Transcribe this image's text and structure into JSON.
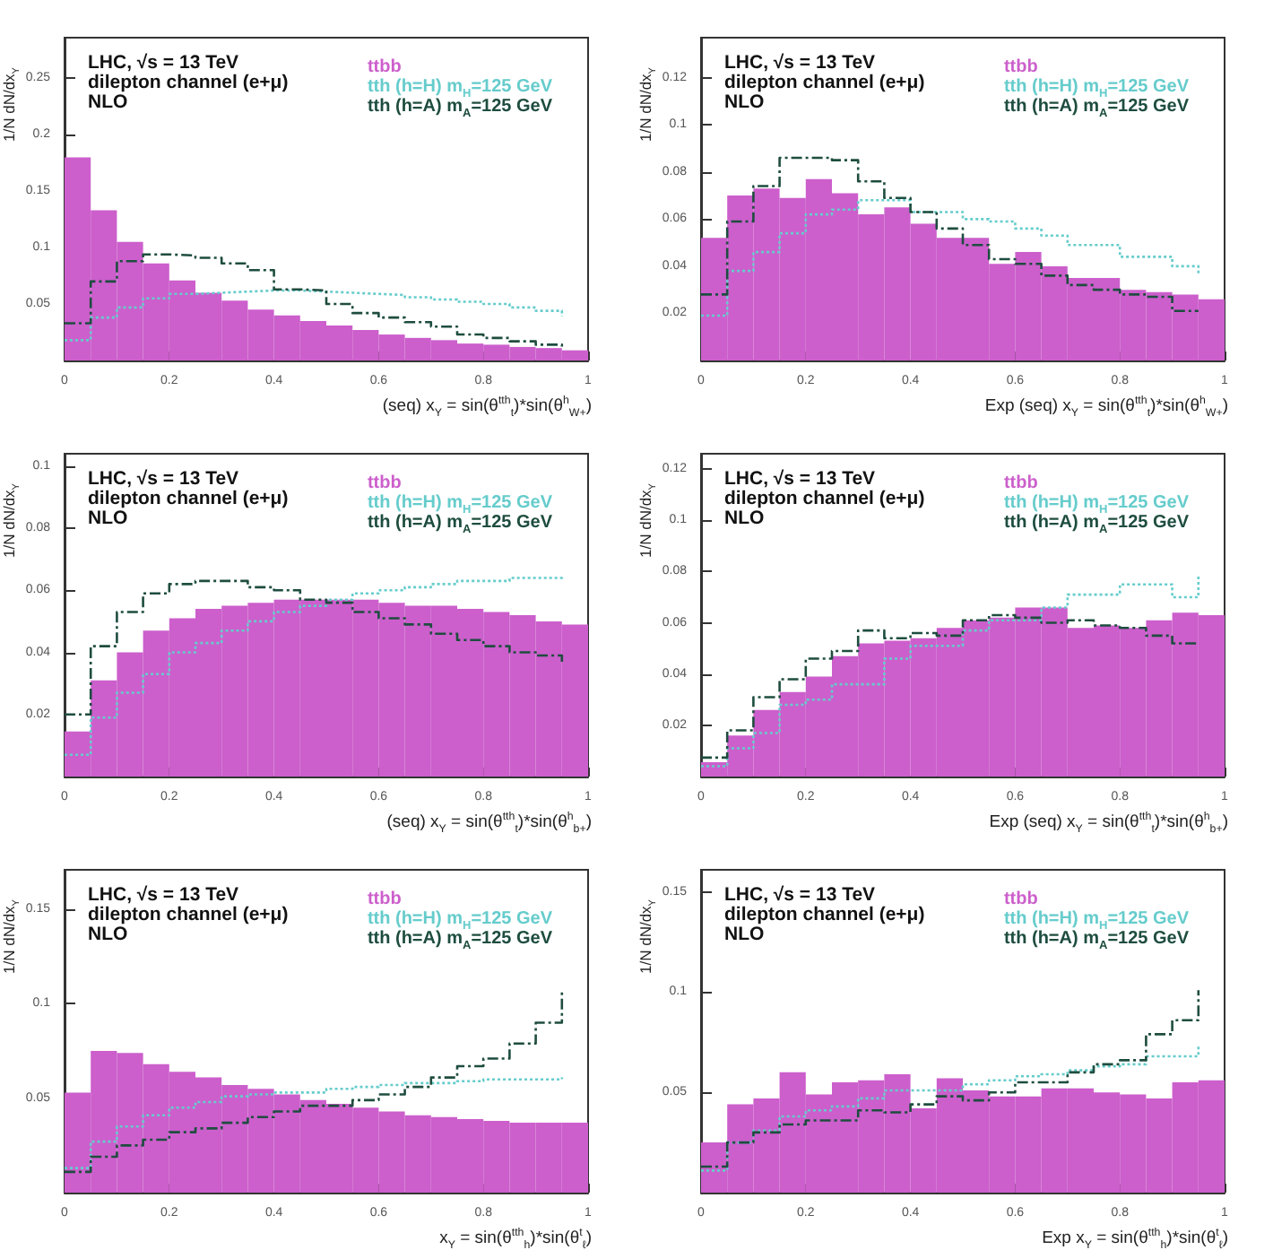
{
  "chart_data": [
    {
      "type": "histogram",
      "bins": [
        0,
        0.05,
        0.1,
        0.15,
        0.2,
        0.25,
        0.3,
        0.35,
        0.4,
        0.45,
        0.5,
        0.55,
        0.6,
        0.65,
        0.7,
        0.75,
        0.8,
        0.85,
        0.9,
        0.95,
        1
      ],
      "xlim": [
        0,
        1
      ],
      "ylim": [
        0,
        0.286
      ],
      "xticks": [
        0,
        0.2,
        0.4,
        0.6,
        0.8,
        1
      ],
      "yticks": [
        0.05,
        0.1,
        0.15,
        0.2,
        0.25
      ],
      "xlabel": "(seq) x$_{Y}$ = sin(θ$^{tth}$$_{t}$)*sin(θ$^{h}$$_{W+}$)",
      "ylabel": "1/N dN/dx$_{Y}$",
      "legend": "top right",
      "annotations": [
        "LHC, √s = 13 TeV",
        "dilepton channel (e+μ)",
        "NLO"
      ],
      "series": [
        {
          "name": "ttbb",
          "color": "#cc5fcc",
          "values": [
            0.18,
            0.133,
            0.105,
            0.086,
            0.071,
            0.06,
            0.053,
            0.045,
            0.04,
            0.035,
            0.031,
            0.027,
            0.023,
            0.02,
            0.018,
            0.015,
            0.014,
            0.012,
            0.011,
            0.009
          ]
        },
        {
          "name": "tth (h=H)  m$_{H}$=125 GeV",
          "type": "step",
          "line_style": "dotted",
          "color": "#66cccc",
          "x": [
            0,
            0.05,
            0.1,
            0.15,
            0.2,
            0.25,
            0.3,
            0.35,
            0.4,
            0.45,
            0.5,
            0.55,
            0.6,
            0.65,
            0.7,
            0.75,
            0.8,
            0.85,
            0.9,
            0.95
          ],
          "values": [
            0.018,
            0.038,
            0.047,
            0.055,
            0.059,
            0.06,
            0.061,
            0.062,
            0.062,
            0.061,
            0.06,
            0.059,
            0.058,
            0.056,
            0.054,
            0.052,
            0.05,
            0.047,
            0.044,
            0.039
          ]
        },
        {
          "name": "tth (h=A)  m$_{A}$=125 GeV",
          "type": "step",
          "line_style": "dashed",
          "color": "#1e4d3f",
          "x": [
            0,
            0.05,
            0.1,
            0.15,
            0.2,
            0.25,
            0.3,
            0.35,
            0.4,
            0.45,
            0.5,
            0.55,
            0.6,
            0.65,
            0.7,
            0.75,
            0.8,
            0.85,
            0.9,
            0.95
          ],
          "values": [
            0.033,
            0.07,
            0.088,
            0.094,
            0.093,
            0.091,
            0.086,
            0.08,
            0.063,
            0.062,
            0.05,
            0.042,
            0.038,
            0.034,
            0.03,
            0.023,
            0.02,
            0.017,
            0.014,
            0.012
          ]
        }
      ]
    },
    {
      "type": "histogram",
      "bins": [
        0,
        0.05,
        0.1,
        0.15,
        0.2,
        0.25,
        0.3,
        0.35,
        0.4,
        0.45,
        0.5,
        0.55,
        0.6,
        0.65,
        0.7,
        0.75,
        0.8,
        0.85,
        0.9,
        0.95,
        1
      ],
      "xlim": [
        0,
        1
      ],
      "ylim": [
        0,
        0.137
      ],
      "xticks": [
        0,
        0.2,
        0.4,
        0.6,
        0.8,
        1
      ],
      "yticks": [
        0.02,
        0.04,
        0.06,
        0.08,
        0.1,
        0.12
      ],
      "xlabel": "Exp (seq) x$_{Y}$ = sin(θ$^{tth}$$_{t}$)*sin(θ$^{h}$$_{W+}$)",
      "ylabel": "1/N dN/dx$_{Y}$",
      "legend": "top right",
      "annotations": [
        "LHC, √s = 13 TeV",
        "dilepton channel (e+μ)",
        "NLO"
      ],
      "series": [
        {
          "name": "ttbb",
          "color": "#cc5fcc",
          "values": [
            0.052,
            0.07,
            0.073,
            0.069,
            0.077,
            0.071,
            0.062,
            0.065,
            0.058,
            0.052,
            0.052,
            0.041,
            0.046,
            0.04,
            0.035,
            0.035,
            0.03,
            0.029,
            0.028,
            0.026
          ]
        },
        {
          "name": "tth (h=H)  m$_{H}$=125 GeV",
          "type": "step",
          "line_style": "dotted",
          "color": "#66cccc",
          "x": [
            0,
            0.05,
            0.1,
            0.15,
            0.2,
            0.25,
            0.3,
            0.35,
            0.4,
            0.45,
            0.5,
            0.55,
            0.6,
            0.65,
            0.7,
            0.75,
            0.8,
            0.85,
            0.9,
            0.95
          ],
          "values": [
            0.019,
            0.038,
            0.046,
            0.054,
            0.062,
            0.064,
            0.068,
            0.068,
            0.063,
            0.063,
            0.06,
            0.059,
            0.056,
            0.053,
            0.049,
            0.049,
            0.044,
            0.044,
            0.04,
            0.037
          ]
        },
        {
          "name": "tth (h=A)  m$_{A}$=125 GeV",
          "type": "step",
          "line_style": "dashed",
          "color": "#1e4d3f",
          "x": [
            0,
            0.05,
            0.1,
            0.15,
            0.2,
            0.25,
            0.3,
            0.35,
            0.4,
            0.45,
            0.5,
            0.55,
            0.6,
            0.65,
            0.7,
            0.75,
            0.8,
            0.85,
            0.9,
            0.95
          ],
          "values": [
            0.028,
            0.059,
            0.074,
            0.086,
            0.086,
            0.085,
            0.076,
            0.069,
            0.063,
            0.056,
            0.049,
            0.043,
            0.041,
            0.036,
            0.032,
            0.03,
            0.028,
            0.027,
            0.021,
            0.021
          ]
        }
      ]
    },
    {
      "type": "histogram",
      "bins": [
        0,
        0.05,
        0.1,
        0.15,
        0.2,
        0.25,
        0.3,
        0.35,
        0.4,
        0.45,
        0.5,
        0.55,
        0.6,
        0.65,
        0.7,
        0.75,
        0.8,
        0.85,
        0.9,
        0.95,
        1
      ],
      "xlim": [
        0,
        1
      ],
      "ylim": [
        0,
        0.104
      ],
      "xticks": [
        0,
        0.2,
        0.4,
        0.6,
        0.8,
        1
      ],
      "yticks": [
        0.02,
        0.04,
        0.06,
        0.08,
        0.1
      ],
      "xlabel": "(seq) x$_{Y}$ = sin(θ$^{tth}$$_{t}$)*sin(θ$^{h}$$_{b+}$)",
      "ylabel": "1/N dN/dx$_{Y}$",
      "legend": "top right",
      "annotations": [
        "LHC, √s = 13 TeV",
        "dilepton channel (e+μ)",
        "NLO"
      ],
      "series": [
        {
          "name": "ttbb",
          "color": "#cc5fcc",
          "values": [
            0.0145,
            0.031,
            0.04,
            0.047,
            0.051,
            0.054,
            0.055,
            0.056,
            0.057,
            0.057,
            0.057,
            0.057,
            0.056,
            0.055,
            0.055,
            0.054,
            0.053,
            0.052,
            0.05,
            0.049
          ]
        },
        {
          "name": "tth (h=H)  m$_{H}$=125 GeV",
          "type": "step",
          "line_style": "dotted",
          "color": "#66cccc",
          "x": [
            0,
            0.05,
            0.1,
            0.15,
            0.2,
            0.25,
            0.3,
            0.35,
            0.4,
            0.45,
            0.5,
            0.55,
            0.6,
            0.65,
            0.7,
            0.75,
            0.8,
            0.85,
            0.9,
            0.95
          ],
          "values": [
            0.007,
            0.019,
            0.027,
            0.033,
            0.04,
            0.043,
            0.047,
            0.05,
            0.053,
            0.055,
            0.057,
            0.059,
            0.06,
            0.061,
            0.062,
            0.063,
            0.063,
            0.064,
            0.064,
            0.065
          ]
        },
        {
          "name": "tth (h=A)  m$_{A}$=125 GeV",
          "type": "step",
          "line_style": "dashed",
          "color": "#1e4d3f",
          "x": [
            0,
            0.05,
            0.1,
            0.15,
            0.2,
            0.25,
            0.3,
            0.35,
            0.4,
            0.45,
            0.5,
            0.55,
            0.6,
            0.65,
            0.7,
            0.75,
            0.8,
            0.85,
            0.9,
            0.95
          ],
          "values": [
            0.02,
            0.042,
            0.053,
            0.059,
            0.062,
            0.063,
            0.063,
            0.061,
            0.06,
            0.057,
            0.056,
            0.053,
            0.051,
            0.049,
            0.046,
            0.044,
            0.042,
            0.04,
            0.039,
            0.037
          ]
        }
      ]
    },
    {
      "type": "histogram",
      "bins": [
        0,
        0.05,
        0.1,
        0.15,
        0.2,
        0.25,
        0.3,
        0.35,
        0.4,
        0.45,
        0.5,
        0.55,
        0.6,
        0.65,
        0.7,
        0.75,
        0.8,
        0.85,
        0.9,
        0.95,
        1
      ],
      "xlim": [
        0,
        1
      ],
      "ylim": [
        0,
        0.126
      ],
      "xticks": [
        0,
        0.2,
        0.4,
        0.6,
        0.8,
        1
      ],
      "yticks": [
        0.02,
        0.04,
        0.06,
        0.08,
        0.1,
        0.12
      ],
      "xlabel": "Exp (seq) x$_{Y}$ = sin(θ$^{tth}$$_{t}$)*sin(θ$^{h}$$_{b+}$)",
      "ylabel": "1/N dN/dx$_{Y}$",
      "legend": "top right",
      "annotations": [
        "LHC, √s = 13 TeV",
        "dilepton channel (e+μ)",
        "NLO"
      ],
      "series": [
        {
          "name": "ttbb",
          "color": "#cc5fcc",
          "values": [
            0.0056,
            0.016,
            0.026,
            0.033,
            0.039,
            0.047,
            0.052,
            0.053,
            0.054,
            0.058,
            0.061,
            0.062,
            0.066,
            0.066,
            0.058,
            0.059,
            0.058,
            0.061,
            0.064,
            0.063
          ]
        },
        {
          "name": "tth (h=H)  m$_{H}$=125 GeV",
          "type": "step",
          "line_style": "dotted",
          "color": "#66cccc",
          "x": [
            0,
            0.05,
            0.1,
            0.15,
            0.2,
            0.25,
            0.3,
            0.35,
            0.4,
            0.45,
            0.5,
            0.55,
            0.6,
            0.65,
            0.7,
            0.75,
            0.8,
            0.85,
            0.9,
            0.95
          ],
          "values": [
            0.004,
            0.011,
            0.017,
            0.028,
            0.03,
            0.036,
            0.036,
            0.046,
            0.051,
            0.051,
            0.057,
            0.061,
            0.061,
            0.066,
            0.071,
            0.071,
            0.075,
            0.075,
            0.07,
            0.079
          ]
        },
        {
          "name": "tth (h=A)  m$_{A}$=125 GeV",
          "type": "step",
          "line_style": "dashed",
          "color": "#1e4d3f",
          "x": [
            0,
            0.05,
            0.1,
            0.15,
            0.2,
            0.25,
            0.3,
            0.35,
            0.4,
            0.45,
            0.5,
            0.55,
            0.6,
            0.65,
            0.7,
            0.75,
            0.8,
            0.85,
            0.9,
            0.95
          ],
          "values": [
            0.0074,
            0.018,
            0.031,
            0.038,
            0.046,
            0.049,
            0.057,
            0.054,
            0.056,
            0.055,
            0.061,
            0.063,
            0.062,
            0.06,
            0.061,
            0.059,
            0.058,
            0.055,
            0.052,
            0.052
          ]
        }
      ]
    },
    {
      "type": "histogram",
      "bins": [
        0,
        0.05,
        0.1,
        0.15,
        0.2,
        0.25,
        0.3,
        0.35,
        0.4,
        0.45,
        0.5,
        0.55,
        0.6,
        0.65,
        0.7,
        0.75,
        0.8,
        0.85,
        0.9,
        0.95,
        1
      ],
      "xlim": [
        0,
        1
      ],
      "ylim": [
        0,
        0.171
      ],
      "xticks": [
        0,
        0.2,
        0.4,
        0.6,
        0.8,
        1
      ],
      "yticks": [
        0.05,
        0.1,
        0.15
      ],
      "xlabel": "x$_{Y}$ = sin(θ$^{tth}$$_{h}$)*sin(θ$^{t}$$_{ℓ}$)",
      "ylabel": "1/N dN/dx$_{Y}$",
      "legend": "top right",
      "annotations": [
        "LHC, √s = 13 TeV",
        "dilepton channel (e+μ)",
        "NLO"
      ],
      "series": [
        {
          "name": "ttbb",
          "color": "#cc5fcc",
          "values": [
            0.053,
            0.075,
            0.074,
            0.068,
            0.064,
            0.061,
            0.057,
            0.055,
            0.052,
            0.049,
            0.047,
            0.045,
            0.043,
            0.041,
            0.04,
            0.039,
            0.038,
            0.037,
            0.037,
            0.037
          ]
        },
        {
          "name": "tth (h=H)  m$_{H}$=125 GeV",
          "type": "step",
          "line_style": "dotted",
          "color": "#66cccc",
          "x": [
            0,
            0.05,
            0.1,
            0.15,
            0.2,
            0.25,
            0.3,
            0.35,
            0.4,
            0.45,
            0.5,
            0.55,
            0.6,
            0.65,
            0.7,
            0.75,
            0.8,
            0.85,
            0.9,
            0.95
          ],
          "values": [
            0.013,
            0.027,
            0.035,
            0.041,
            0.045,
            0.048,
            0.051,
            0.052,
            0.053,
            0.053,
            0.055,
            0.056,
            0.057,
            0.058,
            0.058,
            0.059,
            0.06,
            0.06,
            0.06,
            0.061
          ]
        },
        {
          "name": "tth (h=A)  m$_{A}$=125 GeV",
          "type": "step",
          "line_style": "dashed",
          "color": "#1e4d3f",
          "x": [
            0,
            0.05,
            0.1,
            0.15,
            0.2,
            0.25,
            0.3,
            0.35,
            0.4,
            0.45,
            0.5,
            0.55,
            0.6,
            0.65,
            0.7,
            0.75,
            0.8,
            0.85,
            0.9,
            0.95
          ],
          "values": [
            0.011,
            0.019,
            0.025,
            0.028,
            0.032,
            0.034,
            0.037,
            0.04,
            0.043,
            0.046,
            0.046,
            0.049,
            0.052,
            0.056,
            0.061,
            0.067,
            0.071,
            0.079,
            0.09,
            0.107
          ]
        }
      ]
    },
    {
      "type": "histogram",
      "bins": [
        0,
        0.05,
        0.1,
        0.15,
        0.2,
        0.25,
        0.3,
        0.35,
        0.4,
        0.45,
        0.5,
        0.55,
        0.6,
        0.65,
        0.7,
        0.75,
        0.8,
        0.85,
        0.9,
        0.95,
        1
      ],
      "xlim": [
        0,
        1
      ],
      "ylim": [
        0,
        0.161
      ],
      "xticks": [
        0,
        0.2,
        0.4,
        0.6,
        0.8,
        1
      ],
      "yticks": [
        0.05,
        0.1,
        0.15
      ],
      "xlabel": "Exp x$_{Y}$ = sin(θ$^{tth}$$_{h}$)*sin(θ$^{t}$$_{ℓ}$)",
      "ylabel": "1/N dN/dx$_{Y}$",
      "legend": "top right",
      "annotations": [
        "LHC, √s = 13 TeV",
        "dilepton channel (e+μ)",
        "NLO"
      ],
      "series": [
        {
          "name": "ttbb",
          "color": "#cc5fcc",
          "values": [
            0.025,
            0.044,
            0.047,
            0.06,
            0.049,
            0.055,
            0.056,
            0.059,
            0.042,
            0.057,
            0.051,
            0.048,
            0.048,
            0.052,
            0.052,
            0.05,
            0.049,
            0.047,
            0.055,
            0.056
          ]
        },
        {
          "name": "tth (h=H)  m$_{H}$=125 GeV",
          "type": "step",
          "line_style": "dotted",
          "color": "#66cccc",
          "x": [
            0,
            0.05,
            0.1,
            0.15,
            0.2,
            0.25,
            0.3,
            0.35,
            0.4,
            0.45,
            0.5,
            0.55,
            0.6,
            0.65,
            0.7,
            0.75,
            0.8,
            0.85,
            0.9,
            0.95
          ],
          "values": [
            0.011,
            0.025,
            0.031,
            0.038,
            0.041,
            0.043,
            0.047,
            0.051,
            0.051,
            0.051,
            0.054,
            0.056,
            0.058,
            0.059,
            0.061,
            0.063,
            0.064,
            0.068,
            0.068,
            0.074
          ]
        },
        {
          "name": "tth (h=A)  m$_{A}$=125 GeV",
          "type": "step",
          "line_style": "dashed",
          "color": "#1e4d3f",
          "x": [
            0,
            0.05,
            0.1,
            0.15,
            0.2,
            0.25,
            0.3,
            0.35,
            0.4,
            0.45,
            0.5,
            0.55,
            0.6,
            0.65,
            0.7,
            0.75,
            0.8,
            0.85,
            0.9,
            0.95
          ],
          "values": [
            0.013,
            0.025,
            0.03,
            0.034,
            0.036,
            0.036,
            0.041,
            0.04,
            0.044,
            0.048,
            0.046,
            0.05,
            0.055,
            0.055,
            0.06,
            0.064,
            0.066,
            0.079,
            0.086,
            0.101
          ]
        }
      ]
    }
  ]
}
